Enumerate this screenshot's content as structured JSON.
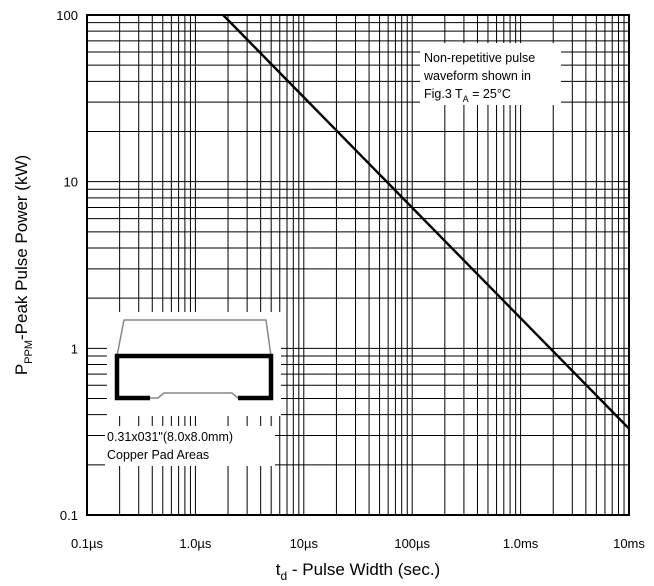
{
  "chart_data": {
    "type": "line",
    "title": "",
    "x_scale": "log",
    "y_scale": "log",
    "xlim_seconds": [
      1e-07,
      0.01
    ],
    "ylim_kW": [
      0.1,
      100
    ],
    "grid": true,
    "x_ticks": [
      {
        "value": 1e-07,
        "label": "0.1µs"
      },
      {
        "value": 1e-06,
        "label": "1.0µs"
      },
      {
        "value": 1e-05,
        "label": "10µs"
      },
      {
        "value": 0.0001,
        "label": "100µs"
      },
      {
        "value": 0.001,
        "label": "1.0ms"
      },
      {
        "value": 0.01,
        "label": "10ms"
      }
    ],
    "y_ticks": [
      {
        "value": 0.1,
        "label": "0.1"
      },
      {
        "value": 1,
        "label": "1"
      },
      {
        "value": 10,
        "label": "10"
      },
      {
        "value": 100,
        "label": "100"
      }
    ],
    "xlabel": {
      "main": "t",
      "sub": "d",
      "rest": " - Pulse Width (sec.)"
    },
    "ylabel": {
      "main": "P",
      "sub": "PPM",
      "rest": "-Peak Pulse Power (kW)"
    },
    "series": [
      {
        "x": [
          1.8e-06,
          0.01
        ],
        "y": [
          100,
          0.33
        ]
      }
    ],
    "annotations": {
      "waveform_note": {
        "line1": "Non-repetitive pulse",
        "line2": "waveform shown in",
        "line3_pre": "Fig.3 T",
        "line3_sub": "A",
        "line3_post": " = 25°C"
      },
      "pad_note": {
        "line1": "0.31x031\"(8.0x8.0mm)",
        "line2": "Copper Pad Areas"
      }
    }
  }
}
